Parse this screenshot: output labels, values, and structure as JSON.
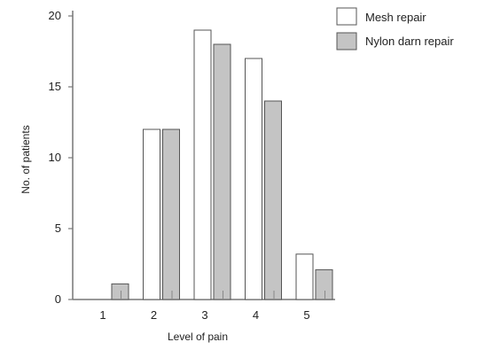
{
  "chart_data": {
    "type": "bar",
    "categories": [
      "1",
      "2",
      "3",
      "4",
      "5"
    ],
    "series": [
      {
        "name": "Mesh repair",
        "values": [
          0,
          12,
          19,
          17,
          3.2
        ],
        "color": "#ffffff"
      },
      {
        "name": "Nylon darn repair",
        "values": [
          1.1,
          12,
          18,
          14,
          2.1
        ],
        "color": "#c4c4c4"
      }
    ],
    "xlabel": "Level of pain",
    "ylabel": "No. of patients",
    "yticks": [
      "0",
      "5",
      "10",
      "15",
      "20"
    ],
    "ylim": [
      0,
      20
    ],
    "grid": false,
    "legend_position": "top-right"
  }
}
